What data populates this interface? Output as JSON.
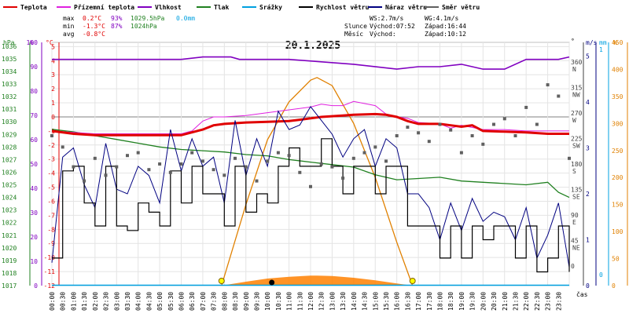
{
  "chart_data": {
    "type": "line",
    "title": "20.1.2025",
    "legend": [
      {
        "label": "Teplota",
        "color": "#e00000"
      },
      {
        "label": "Přízemní teplota",
        "color": "#e020e0"
      },
      {
        "label": "Vlhkost",
        "color": "#8000c0"
      },
      {
        "label": "Tlak",
        "color": "#208020"
      },
      {
        "label": "Srážky",
        "color": "#00a0e0"
      },
      {
        "label": "Rychlost větru",
        "color": "#000000"
      },
      {
        "label": "Náraz větru",
        "color": "#000080"
      },
      {
        "label": "Směr větru",
        "color": "#606060"
      }
    ],
    "stats": {
      "max_label": "max",
      "max_temp": "0.2°C",
      "max_hum": "93%",
      "max_press": "1029.5hPa",
      "max_rain": "0.0mm",
      "min_label": "min",
      "min_temp": "-1.3°C",
      "min_hum": "87%",
      "min_press": "1024hPa",
      "avg_label": "avg",
      "avg_temp": "-0.8°C"
    },
    "wind_info": {
      "ws": "WS:2.7m/s",
      "wg": "WG:4.1m/s"
    },
    "sun_info": {
      "sun_label": "Slunce",
      "sunrise": "Východ:07:52",
      "sunset": "Západ:16:44",
      "moon_label": "Měsíc",
      "moonrise": "Východ:",
      "moonset": "Západ:10:12"
    },
    "axes": {
      "hpa": {
        "label": "hPa",
        "ticks": [
          "1036",
          "1035",
          "1034",
          "1033",
          "1032",
          "1031",
          "1030",
          "1029",
          "1028",
          "1027",
          "1026",
          "1025",
          "1024",
          "1023",
          "1022",
          "1021",
          "1020",
          "1019",
          "1018",
          "1017"
        ]
      },
      "pct": {
        "label": "%",
        "ticks": [
          "100",
          "90",
          "80",
          "70",
          "60",
          "50",
          "40",
          "30",
          "20",
          "10",
          "0"
        ]
      },
      "degc": {
        "label": "°C",
        "ticks": [
          "5",
          "4",
          "3",
          "2",
          "1",
          "0",
          "-1",
          "-2",
          "-3",
          "-4",
          "-5",
          "-6",
          "-7",
          "-8",
          "-9",
          "-10",
          "-11",
          "-12"
        ]
      },
      "deg": {
        "label": "°",
        "ticks": [
          "360",
          "315",
          "270",
          "225",
          "180",
          "135",
          "90",
          "45",
          "0"
        ],
        "dirs": [
          "N",
          "NW",
          "W",
          "SW",
          "S",
          "SE",
          "E",
          "NE"
        ]
      },
      "ms": {
        "label": "m/s",
        "ticks": [
          "5",
          "4",
          "3",
          "2",
          "1",
          "0"
        ]
      },
      "mm": {
        "label": "mm",
        "ticks": [
          "1",
          "0"
        ]
      },
      "watt": {
        "label": "W",
        "ticks": [
          "450",
          "400",
          "350",
          "300",
          "250",
          "200",
          "150",
          "100",
          "50",
          "0"
        ]
      },
      "x": {
        "label": "čas",
        "ticks": [
          "00:00",
          "00:30",
          "01:00",
          "01:30",
          "02:00",
          "02:30",
          "03:00",
          "03:30",
          "04:00",
          "04:30",
          "05:00",
          "05:30",
          "06:00",
          "06:30",
          "07:00",
          "07:30",
          "08:00",
          "08:30",
          "09:00",
          "09:30",
          "10:00",
          "10:30",
          "11:00",
          "11:30",
          "12:00",
          "12:30",
          "13:00",
          "13:30",
          "14:00",
          "14:30",
          "15:00",
          "15:30",
          "16:00",
          "16:30",
          "17:00",
          "17:30",
          "18:00",
          "18:30",
          "19:00",
          "19:30",
          "20:00",
          "20:30",
          "21:00",
          "21:30",
          "22:00",
          "22:30",
          "23:00",
          "23:30"
        ]
      }
    },
    "x_range_hours": [
      0,
      24
    ],
    "series": [
      {
        "name": "Teplota",
        "unit": "°C",
        "x": [
          0,
          1,
          2,
          3,
          4,
          5,
          6,
          6.5,
          7,
          7.5,
          8,
          9,
          10,
          11,
          11.5,
          12,
          12.5,
          13,
          13.5,
          14,
          15,
          15.5,
          16,
          16.5,
          17,
          18,
          18.5,
          19,
          19.5,
          20,
          21,
          22,
          23,
          24
        ],
        "values": [
          -1.0,
          -1.2,
          -1.3,
          -1.3,
          -1.3,
          -1.3,
          -1.3,
          -1.1,
          -0.9,
          -0.6,
          -0.5,
          -0.4,
          -0.35,
          -0.3,
          -0.2,
          -0.1,
          0.0,
          0.05,
          0.1,
          0.15,
          0.2,
          0.15,
          0.0,
          -0.3,
          -0.5,
          -0.5,
          -0.6,
          -0.7,
          -0.6,
          -1.0,
          -1.05,
          -1.1,
          -1.2,
          -1.2
        ]
      },
      {
        "name": "Přízemní teplota",
        "unit": "°C",
        "x": [
          0,
          1,
          2,
          3,
          4,
          5,
          6,
          6.5,
          7,
          7.5,
          8,
          9,
          10,
          11,
          12,
          12.5,
          13,
          13.5,
          14,
          15,
          15.5,
          16,
          16.5,
          17,
          18,
          18.5,
          19,
          20,
          21,
          22,
          23,
          24
        ],
        "values": [
          -1.0,
          -1.1,
          -1.2,
          -1.2,
          -1.2,
          -1.2,
          -1.2,
          -1.0,
          -0.3,
          0.0,
          0.0,
          0.1,
          0.3,
          0.5,
          0.7,
          0.9,
          0.8,
          0.8,
          1.1,
          0.8,
          0.2,
          0.0,
          -0.1,
          -0.4,
          -0.5,
          -0.8,
          -0.6,
          -0.9,
          -0.9,
          -1.0,
          -1.0,
          -1.0
        ]
      },
      {
        "name": "Vlhkost",
        "unit": "%",
        "x": [
          0,
          6,
          7,
          8.3,
          8.7,
          10,
          11,
          14,
          16,
          17,
          18,
          19,
          19.5,
          20,
          21,
          22,
          23.5,
          24
        ],
        "values": [
          93,
          93,
          94,
          94,
          93,
          93,
          93,
          91,
          89,
          90,
          90,
          91,
          90,
          89,
          89,
          93,
          93,
          94
        ]
      },
      {
        "name": "Tlak",
        "unit": "hPa",
        "x": [
          0,
          1,
          2,
          3,
          4,
          5,
          6,
          7,
          8,
          9,
          10,
          11,
          12,
          13,
          14,
          15,
          16,
          17,
          18,
          19,
          20,
          21,
          22,
          23,
          23.5,
          24
        ],
        "values": [
          1029.4,
          1029.2,
          1028.9,
          1028.6,
          1028.3,
          1028.0,
          1027.8,
          1027.7,
          1027.6,
          1027.4,
          1027.3,
          1027.0,
          1026.8,
          1026.6,
          1026.4,
          1025.8,
          1025.4,
          1025.5,
          1025.6,
          1025.3,
          1025.2,
          1025.1,
          1025.0,
          1025.2,
          1024.4,
          1024.0
        ]
      },
      {
        "name": "Srážky",
        "unit": "mm",
        "x": [
          0,
          24
        ],
        "values": [
          0,
          0
        ]
      },
      {
        "name": "Rychlost větru",
        "unit": "m/s",
        "x": [
          0,
          0.5,
          1,
          1.5,
          2,
          2.5,
          3,
          3.5,
          4,
          4.5,
          5,
          5.5,
          6,
          6.5,
          7,
          7.5,
          8,
          8.5,
          9,
          9.5,
          10,
          10.5,
          11,
          11.5,
          12,
          12.5,
          13,
          13.5,
          14,
          14.5,
          15,
          15.5,
          16,
          16.5,
          17,
          17.5,
          18,
          18.5,
          19,
          19.5,
          20,
          20.5,
          21,
          21.5,
          22,
          22.5,
          23,
          23.5,
          24
        ],
        "values": [
          0.6,
          2.5,
          2.6,
          1.8,
          1.3,
          2.6,
          1.3,
          1.2,
          1.8,
          1.6,
          1.3,
          2.5,
          1.8,
          2.6,
          2.0,
          2.0,
          1.3,
          2.6,
          1.6,
          2.0,
          1.8,
          2.6,
          3.0,
          2.6,
          2.6,
          3.2,
          2.6,
          2.0,
          2.6,
          2.6,
          2.0,
          2.6,
          2.6,
          1.3,
          1.3,
          1.3,
          0.6,
          1.3,
          0.6,
          1.3,
          1.0,
          1.3,
          1.3,
          0.6,
          1.3,
          0.3,
          0.6,
          1.3,
          0.3
        ]
      },
      {
        "name": "Náraz větru",
        "unit": "m/s",
        "x": [
          0,
          0.5,
          1,
          1.5,
          2,
          2.5,
          3,
          3.5,
          4,
          4.5,
          5,
          5.5,
          6,
          6.5,
          7,
          7.5,
          8,
          8.5,
          9,
          9.5,
          10,
          10.5,
          11,
          11.5,
          12,
          12.5,
          13,
          13.5,
          14,
          14.5,
          15,
          15.5,
          16,
          16.5,
          17,
          17.5,
          18,
          18.5,
          19,
          19.5,
          20,
          20.5,
          21,
          21.5,
          22,
          22.5,
          23,
          23.5,
          24
        ],
        "values": [
          0.5,
          2.8,
          3.0,
          2.2,
          1.7,
          3.1,
          2.1,
          2.0,
          2.6,
          2.4,
          1.8,
          3.4,
          2.5,
          3.2,
          2.6,
          2.8,
          1.8,
          3.6,
          2.4,
          3.2,
          2.6,
          3.8,
          3.4,
          3.5,
          3.9,
          3.6,
          3.3,
          2.8,
          3.2,
          3.4,
          2.6,
          3.2,
          3.0,
          2.0,
          2.0,
          1.7,
          1.0,
          1.8,
          1.2,
          1.9,
          1.4,
          1.6,
          1.5,
          1.0,
          1.7,
          0.6,
          1.1,
          1.8,
          0.4
        ]
      },
      {
        "name": "Slunce",
        "unit": "W",
        "x": [
          7.87,
          9,
          10,
          11,
          12,
          12.3,
          13,
          14,
          15,
          16,
          16.73
        ],
        "values": [
          0,
          150,
          270,
          340,
          380,
          385,
          370,
          300,
          200,
          80,
          0
        ]
      },
      {
        "name": "Směr větru",
        "unit": "°",
        "x": [
          0,
          0.5,
          1,
          1.5,
          2,
          2.5,
          3,
          3.5,
          4,
          4.5,
          5,
          5.5,
          6,
          6.5,
          7,
          7.5,
          8,
          8.5,
          9,
          9.5,
          10,
          10.5,
          11,
          11.5,
          12,
          12.5,
          13,
          13.5,
          14,
          14.5,
          15,
          15.5,
          16,
          16.5,
          17,
          17.5,
          18,
          18.5,
          19,
          19.5,
          20,
          20.5,
          21,
          21.5,
          22,
          22.5,
          23,
          23.5,
          24
        ],
        "values": [
          230,
          210,
          175,
          150,
          190,
          160,
          175,
          195,
          200,
          170,
          180,
          165,
          180,
          200,
          185,
          170,
          160,
          190,
          175,
          150,
          185,
          200,
          195,
          165,
          140,
          180,
          175,
          155,
          190,
          200,
          210,
          185,
          230,
          245,
          235,
          220,
          250,
          240,
          200,
          230,
          215,
          250,
          260,
          230,
          280,
          250,
          320,
          300,
          190
        ]
      }
    ],
    "markers": {
      "sunrise_hour": 7.87,
      "sunset_hour": 16.73,
      "moonset_hour": 10.2
    },
    "ylim": {
      "temp": [
        -12,
        5.3
      ],
      "hum": [
        0,
        100
      ],
      "press": [
        1017,
        1036.3
      ],
      "wind": [
        0,
        5.3
      ],
      "deg": [
        0,
        360
      ],
      "watt": [
        0,
        450
      ]
    },
    "grid": true
  }
}
